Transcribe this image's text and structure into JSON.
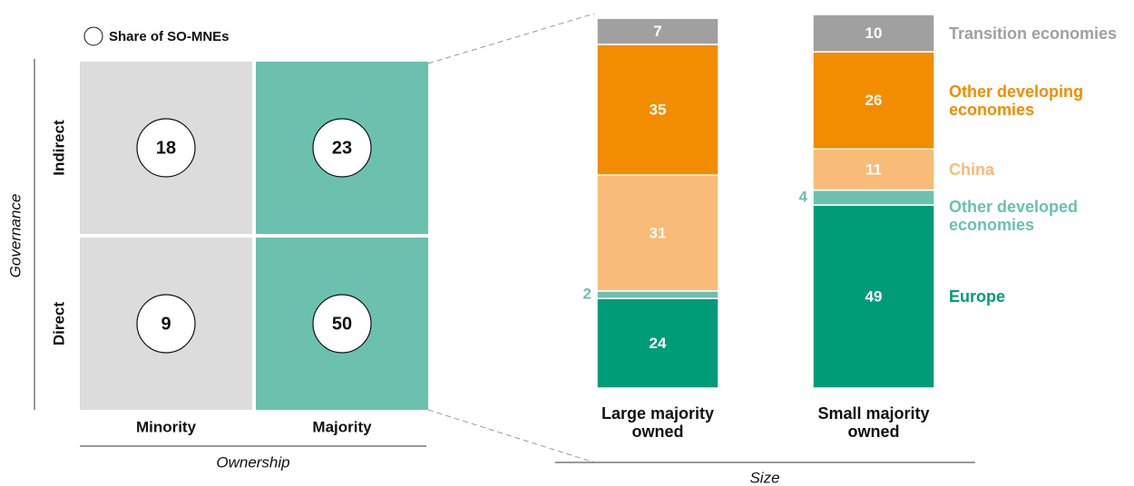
{
  "chart_data": [
    {
      "type": "matrix",
      "legend": "Share of SO-MNEs",
      "ylabel": "Governance",
      "xlabel": "Ownership",
      "rows": [
        "Indirect",
        "Direct"
      ],
      "columns": [
        "Minority",
        "Majority"
      ],
      "values": [
        [
          18,
          23
        ],
        [
          9,
          50
        ]
      ],
      "colors": [
        "#dcdcdc",
        "#6bc1ae"
      ]
    },
    {
      "type": "stacked_bar",
      "xlabel": "Size",
      "categories": [
        "Large majority owned",
        "Small majority owned"
      ],
      "series": [
        {
          "name": "Europe",
          "color": "#009b77",
          "values": [
            24,
            49
          ]
        },
        {
          "name": "Other developed economies",
          "color": "#6bc1ae",
          "values": [
            2,
            4
          ]
        },
        {
          "name": "China",
          "color": "#f9bb78",
          "values": [
            31,
            11
          ]
        },
        {
          "name": "Other developing economies",
          "color": "#f28c00",
          "values": [
            35,
            26
          ]
        },
        {
          "name": "Transition economies",
          "color": "#a0a0a0",
          "values": [
            7,
            10
          ]
        }
      ]
    }
  ]
}
